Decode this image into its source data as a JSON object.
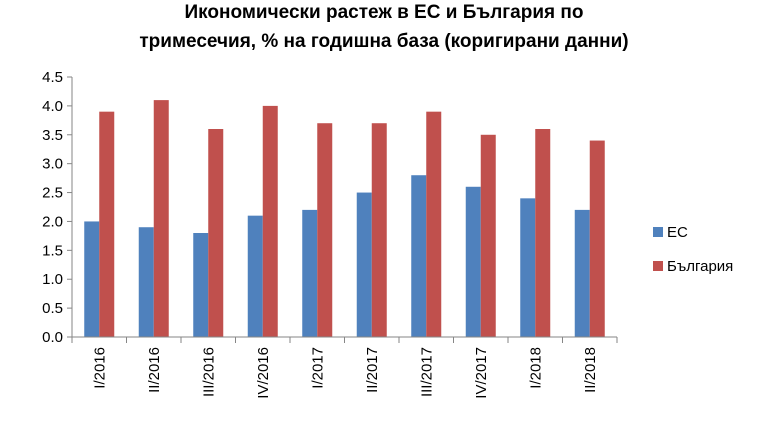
{
  "chart_data": {
    "type": "bar",
    "title_line1": "Икономически растеж в ЕС и България по",
    "title_line2": "тримесечия, % на годишна база (коригирани данни)",
    "categories": [
      "I/2016",
      "II/2016",
      "III/2016",
      "IV/2016",
      "I/2017",
      "II/2017",
      "III/2017",
      "IV/2017",
      "I/2018",
      "II/2018"
    ],
    "series": [
      {
        "name": "ЕС",
        "color": "#4F81BD",
        "values": [
          2.0,
          1.9,
          1.8,
          2.1,
          2.2,
          2.5,
          2.8,
          2.6,
          2.4,
          2.2
        ]
      },
      {
        "name": "България",
        "color": "#C0504D",
        "values": [
          3.9,
          4.1,
          3.6,
          4.0,
          3.7,
          3.7,
          3.9,
          3.5,
          3.6,
          3.4
        ]
      }
    ],
    "ylim": [
      0,
      4.5
    ],
    "yticks": [
      "0.0",
      "0.5",
      "1.0",
      "1.5",
      "2.0",
      "2.5",
      "3.0",
      "3.5",
      "4.0",
      "4.5"
    ],
    "grid": false,
    "legend_position": "right"
  }
}
